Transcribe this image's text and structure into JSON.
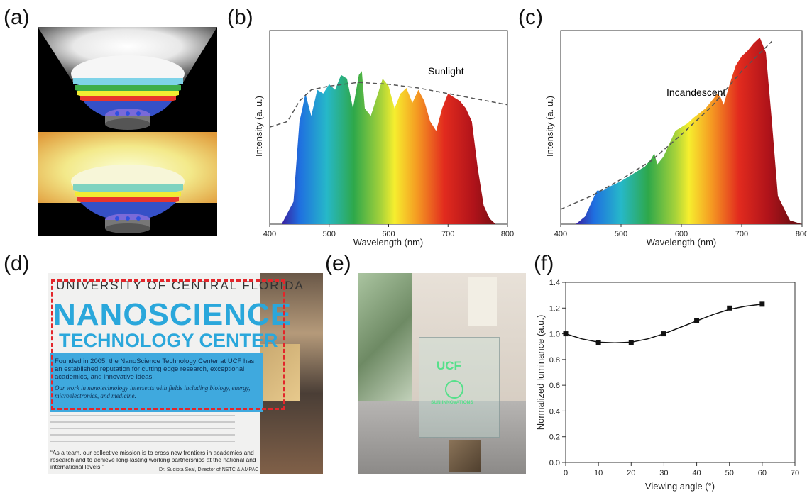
{
  "panels": {
    "a": {
      "label": "(a)"
    },
    "b": {
      "label": "(b)",
      "annotation": "Sunlight",
      "xlabel": "Wavelength (nm)",
      "ylabel": "Intensity (a. u.)",
      "xticks": [
        "400",
        "500",
        "600",
        "700",
        "800"
      ]
    },
    "c": {
      "label": "(c)",
      "annotation": "Incandescent",
      "xlabel": "Wavelength (nm)",
      "ylabel": "Intensity (a. u.)",
      "xticks": [
        "400",
        "500",
        "600",
        "700",
        "800"
      ]
    },
    "d": {
      "label": "(d)",
      "university": "UNIVERSITY OF CENTRAL FLORIDA",
      "title1": "NANOSCIENCE",
      "title2": "TECHNOLOGY CENTER",
      "para1": "Founded in 2005, the NanoScience Technology Center at UCF has an established reputation for cutting edge research, exceptional academics, and innovative ideas.",
      "para2": "Our work in nanotechnology intersects with fields including biology, energy, microelectronics, and medicine.",
      "quote": "“As a team, our collective mission is to cross new frontiers in academics and research and to achieve long-lasting working partnerships at the national and international levels.”",
      "attribution": "—Dr. Sudipta Seal, Director of NSTC & AMPAC"
    },
    "e": {
      "label": "(e)",
      "logo_text": "UCF",
      "sub_text": "SUN INNOVATIONS"
    },
    "f": {
      "label": "(f)"
    }
  },
  "chart_data": [
    {
      "panel": "b",
      "type": "area",
      "title": "",
      "annotation": "Sunlight",
      "xlabel": "Wavelength (nm)",
      "ylabel": "Intensity (a. u.)",
      "xlim": [
        400,
        800
      ],
      "xticks": [
        400,
        500,
        600,
        700,
        800
      ],
      "series": [
        {
          "kind": "spectrum",
          "x": [
            420,
            440,
            450,
            455,
            460,
            470,
            480,
            490,
            500,
            510,
            520,
            530,
            540,
            550,
            555,
            560,
            570,
            580,
            590,
            600,
            610,
            620,
            630,
            640,
            650,
            660,
            670,
            680,
            690,
            700,
            710,
            720,
            730,
            740,
            750,
            760,
            770,
            780,
            790,
            800
          ],
          "y": [
            0,
            0.12,
            0.55,
            0.62,
            0.7,
            0.58,
            0.72,
            0.7,
            0.75,
            0.72,
            0.8,
            0.78,
            0.62,
            0.8,
            0.82,
            0.62,
            0.58,
            0.68,
            0.78,
            0.74,
            0.62,
            0.7,
            0.73,
            0.65,
            0.72,
            0.66,
            0.55,
            0.5,
            0.62,
            0.7,
            0.68,
            0.66,
            0.62,
            0.55,
            0.3,
            0.1,
            0.03,
            0,
            0,
            0
          ]
        },
        {
          "kind": "dashed",
          "x": [
            400,
            430,
            450,
            470,
            500,
            550,
            600,
            650,
            700,
            750,
            800
          ],
          "y": [
            0.52,
            0.55,
            0.66,
            0.72,
            0.74,
            0.76,
            0.75,
            0.73,
            0.7,
            0.67,
            0.64
          ]
        }
      ]
    },
    {
      "panel": "c",
      "type": "area",
      "title": "",
      "annotation": "Incandescent",
      "xlabel": "Wavelength (nm)",
      "ylabel": "Intensity (a. u.)",
      "xlim": [
        400,
        800
      ],
      "xticks": [
        400,
        500,
        600,
        700,
        800
      ],
      "series": [
        {
          "kind": "spectrum",
          "x": [
            425,
            440,
            460,
            470,
            480,
            500,
            520,
            540,
            550,
            555,
            560,
            570,
            580,
            590,
            600,
            610,
            620,
            640,
            660,
            665,
            670,
            680,
            690,
            700,
            710,
            720,
            730,
            740,
            750,
            760,
            780,
            800
          ],
          "y": [
            0,
            0.04,
            0.18,
            0.18,
            0.2,
            0.23,
            0.27,
            0.31,
            0.35,
            0.38,
            0.32,
            0.36,
            0.43,
            0.5,
            0.52,
            0.54,
            0.57,
            0.62,
            0.7,
            0.68,
            0.64,
            0.75,
            0.85,
            0.9,
            0.93,
            0.97,
            1.0,
            0.92,
            0.55,
            0.15,
            0.02,
            0
          ]
        },
        {
          "kind": "dashed",
          "x": [
            400,
            450,
            500,
            550,
            600,
            650,
            700,
            750
          ],
          "y": [
            0.08,
            0.15,
            0.24,
            0.34,
            0.48,
            0.63,
            0.82,
            0.98
          ]
        }
      ]
    },
    {
      "panel": "f",
      "type": "scatter",
      "title": "",
      "xlabel": "Viewing angle (°)",
      "ylabel": "Normalized luminance (a.u.)",
      "xlim": [
        0,
        70
      ],
      "ylim": [
        0,
        1.4
      ],
      "xticks": [
        0,
        10,
        20,
        30,
        40,
        50,
        60,
        70
      ],
      "yticks": [
        0.0,
        0.2,
        0.4,
        0.6,
        0.8,
        1.0,
        1.2,
        1.4
      ],
      "points": {
        "x": [
          0,
          10,
          20,
          30,
          40,
          50,
          60
        ],
        "y": [
          1.0,
          0.93,
          0.93,
          1.0,
          1.1,
          1.2,
          1.23
        ]
      },
      "fit": {
        "x": [
          0,
          5,
          10,
          15,
          20,
          25,
          30,
          35,
          40,
          45,
          50,
          55,
          60
        ],
        "y": [
          1.0,
          0.96,
          0.935,
          0.93,
          0.935,
          0.96,
          1.0,
          1.05,
          1.1,
          1.15,
          1.19,
          1.215,
          1.23
        ]
      }
    }
  ]
}
